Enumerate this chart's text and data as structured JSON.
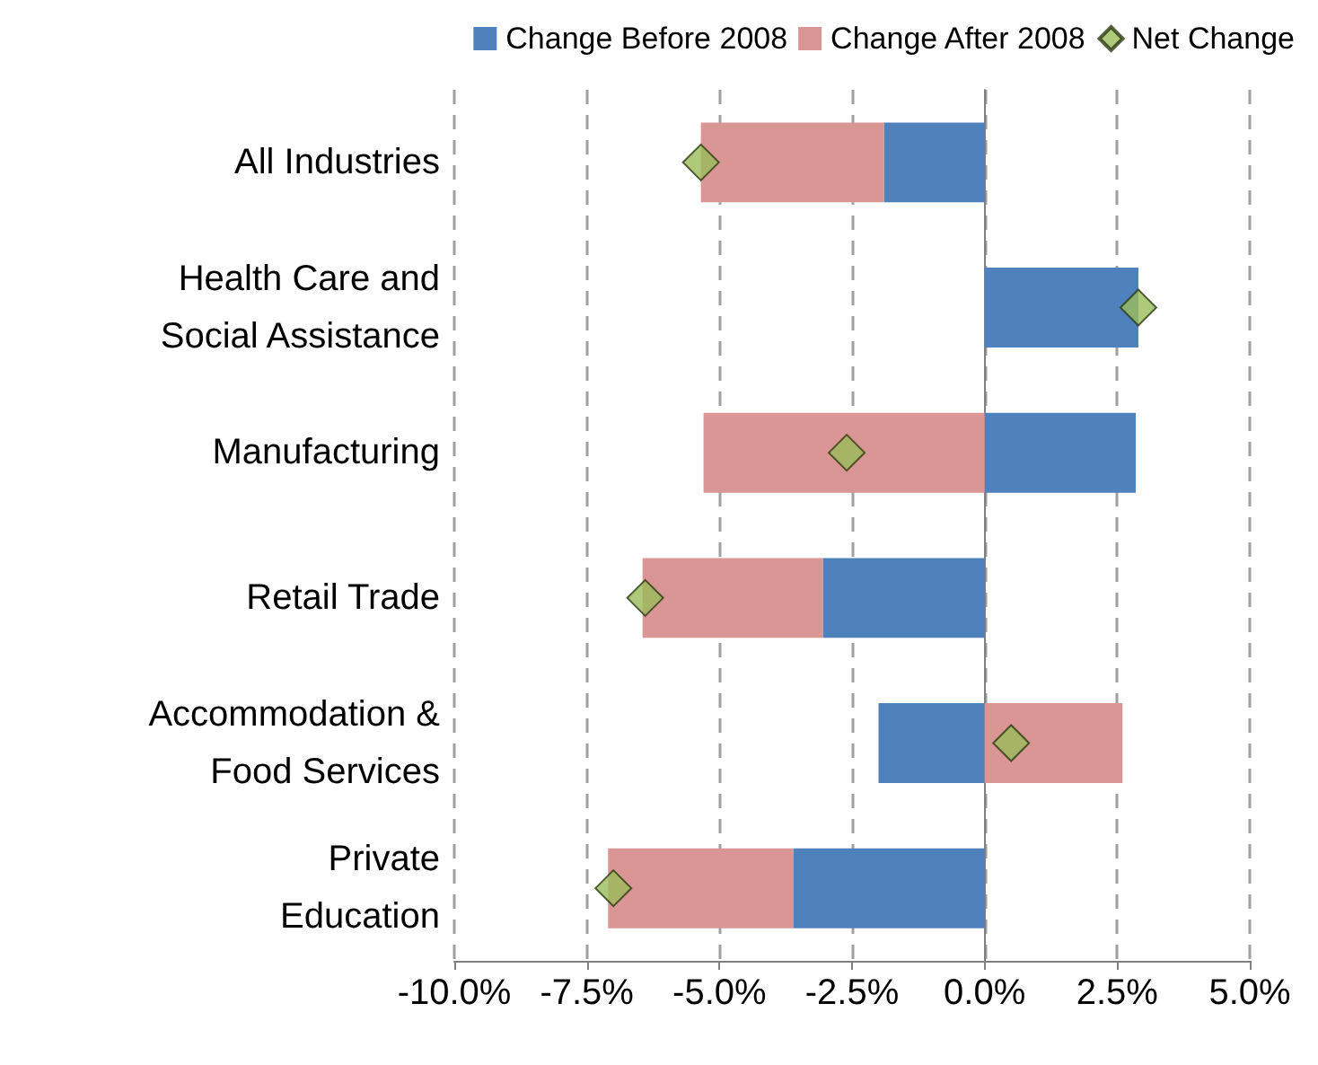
{
  "chart_data": {
    "type": "bar",
    "orientation": "horizontal",
    "stacked": true,
    "categories": [
      "All Industries",
      "Health Care and\nSocial Assistance",
      "Manufacturing",
      "Retail Trade",
      "Accommodation &\nFood Services",
      "Private\nEducation"
    ],
    "series": [
      {
        "name": "Change Before 2008",
        "color": "#4f81bd",
        "values": [
          -1.9,
          2.9,
          2.85,
          -3.05,
          -2.0,
          -3.6
        ]
      },
      {
        "name": "Change After 2008",
        "color": "#d99694",
        "values": [
          -3.45,
          0,
          -5.3,
          -3.4,
          2.6,
          -3.5
        ]
      },
      {
        "name": "Net Change",
        "type": "scatter",
        "marker": "diamond",
        "color": "#9bbb59",
        "values": [
          -5.35,
          2.9,
          -2.6,
          -6.4,
          0.5,
          -7.0
        ]
      }
    ],
    "xlim": [
      -10,
      5
    ],
    "xticks": [
      {
        "value": -10,
        "label": "-10.0%"
      },
      {
        "value": -7.5,
        "label": "-7.5%"
      },
      {
        "value": -5,
        "label": "-5.0%"
      },
      {
        "value": -2.5,
        "label": "-2.5%"
      },
      {
        "value": 0,
        "label": "0.0%"
      },
      {
        "value": 2.5,
        "label": "2.5%"
      },
      {
        "value": 5,
        "label": "5.0%"
      }
    ],
    "grid": "x",
    "legend": "top right"
  }
}
